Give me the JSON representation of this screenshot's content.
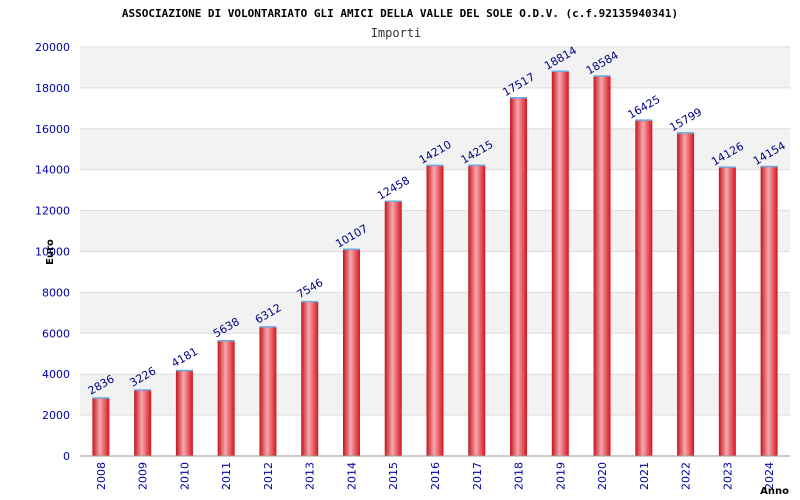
{
  "chart_data": {
    "type": "bar",
    "title": "ASSOCIAZIONE DI VOLONTARIATO GLI AMICI DELLA VALLE DEL SOLE O.D.V. (c.f.92135940341)",
    "subtitle": "Importi",
    "xlabel": "Anno",
    "ylabel": "Euro",
    "ylim": [
      0,
      20000
    ],
    "yticks": [
      "0",
      "2000",
      "4000",
      "6000",
      "8000",
      "10000",
      "12000",
      "14000",
      "16000",
      "18000",
      "20000"
    ],
    "categories": [
      "2008",
      "2009",
      "2010",
      "2011",
      "2012",
      "2013",
      "2014",
      "2015",
      "2016",
      "2017",
      "2018",
      "2019",
      "2020",
      "2021",
      "2022",
      "2023",
      "2024"
    ],
    "values": [
      2836,
      3226,
      4181,
      5638,
      6312,
      7546,
      10107,
      12458,
      14210,
      14215,
      17517,
      18814,
      18584,
      16425,
      15799,
      14126,
      14154
    ],
    "grid": true,
    "colors": {
      "bar": "#e8202a",
      "bar_highlight": "#f7a8ae",
      "bar_top": "#6fa8dc",
      "band": "#f2f2f2",
      "axis_text": "#0000aa"
    }
  }
}
